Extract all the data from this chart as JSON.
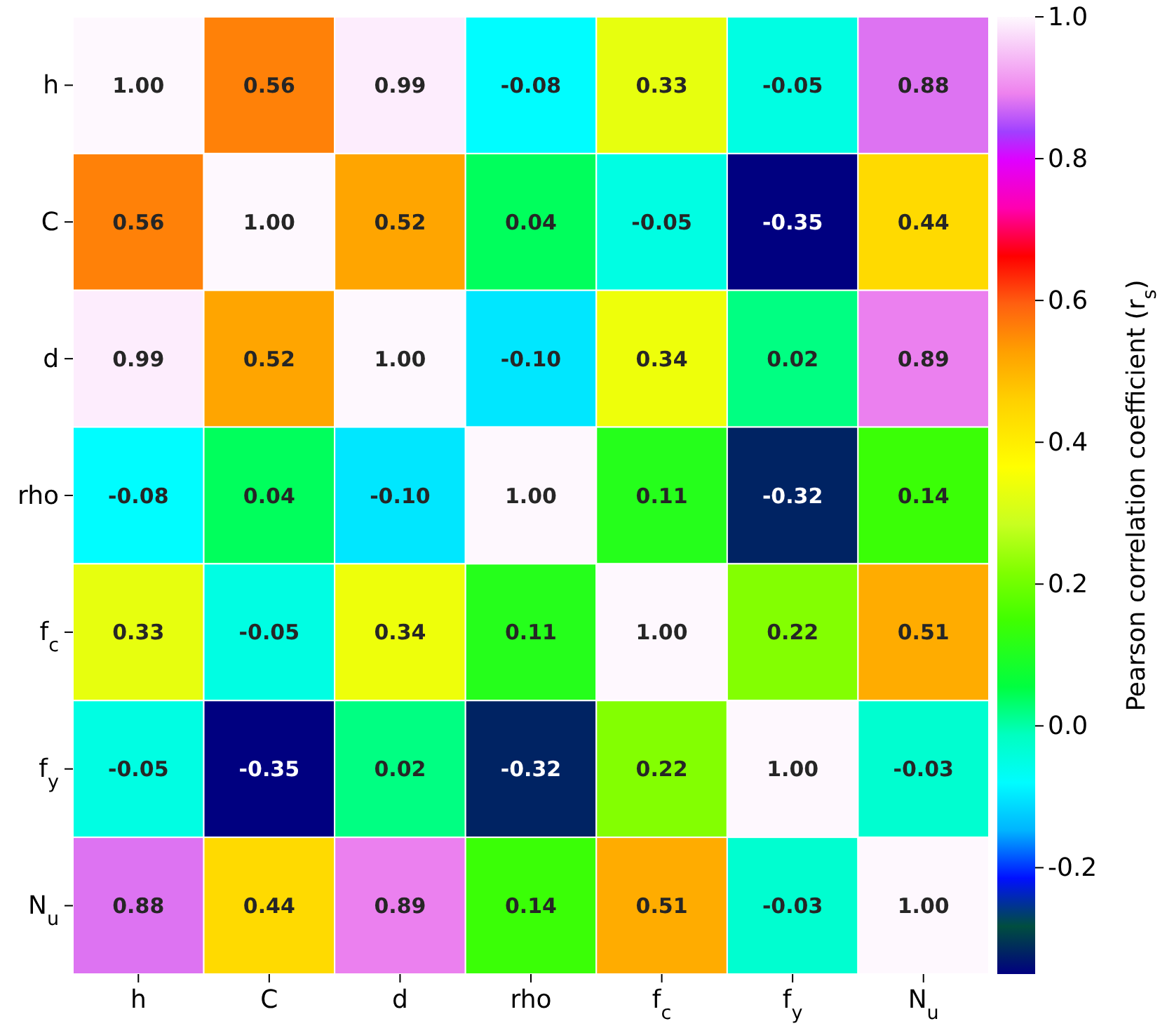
{
  "chart_data": {
    "type": "heatmap",
    "clabel": "Pearson correlation coefficient (r$_{s}$)",
    "categories": [
      "h",
      "C",
      "d",
      "rho",
      "f$_{c}$",
      "f$_{y}$",
      "N$_{u}$"
    ],
    "y_categories": [
      "h",
      "C",
      "d",
      "rho",
      "f$_{c}$",
      "f$_{y}$",
      "N$_{u}$"
    ],
    "cells": [
      [
        1.0,
        0.56,
        0.99,
        -0.08,
        0.33,
        -0.05,
        0.88
      ],
      [
        0.56,
        1.0,
        0.52,
        0.04,
        -0.05,
        -0.35,
        0.44
      ],
      [
        0.99,
        0.52,
        1.0,
        -0.1,
        0.34,
        0.02,
        0.89
      ],
      [
        -0.08,
        0.04,
        -0.1,
        1.0,
        0.11,
        -0.32,
        0.14
      ],
      [
        0.33,
        -0.05,
        0.34,
        0.11,
        1.0,
        0.22,
        0.51
      ],
      [
        -0.05,
        -0.35,
        0.02,
        -0.32,
        0.22,
        1.0,
        -0.03
      ],
      [
        0.88,
        0.44,
        0.89,
        0.14,
        0.51,
        -0.03,
        1.0
      ]
    ],
    "cell_labels": [
      [
        "1.00",
        "0.56",
        "0.99",
        "-0.08",
        "0.33",
        "-0.05",
        "0.88"
      ],
      [
        "0.56",
        "1.00",
        "0.52",
        "0.04",
        "-0.05",
        "-0.35",
        "0.44"
      ],
      [
        "0.99",
        "0.52",
        "1.00",
        "-0.10",
        "0.34",
        "0.02",
        "0.89"
      ],
      [
        "-0.08",
        "0.04",
        "-0.10",
        "1.00",
        "0.11",
        "-0.32",
        "0.14"
      ],
      [
        "0.33",
        "-0.05",
        "0.34",
        "0.11",
        "1.00",
        "0.22",
        "0.51"
      ],
      [
        "-0.05",
        "-0.35",
        "0.02",
        "-0.32",
        "0.22",
        "1.00",
        "-0.03"
      ],
      [
        "0.88",
        "0.44",
        "0.89",
        "0.14",
        "0.51",
        "-0.03",
        "1.00"
      ]
    ],
    "clim": [
      -0.35,
      1.0
    ],
    "cticks": [
      {
        "value": -0.2,
        "label": "-0.2"
      },
      {
        "value": 0.0,
        "label": "0.0"
      },
      {
        "value": 0.2,
        "label": "0.2"
      },
      {
        "value": 0.4,
        "label": "0.4"
      },
      {
        "value": 0.6,
        "label": "0.6"
      },
      {
        "value": 0.8,
        "label": "0.8"
      },
      {
        "value": 1.0,
        "label": "1.0"
      }
    ]
  }
}
